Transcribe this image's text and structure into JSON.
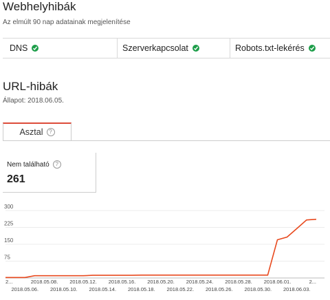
{
  "site_errors": {
    "title": "Webhelyhibák",
    "subtitle": "Az elmúlt 90 nap adatainak megjelenítése",
    "checks": [
      {
        "label": "DNS",
        "status": "ok"
      },
      {
        "label": "Szerverkapcsolat",
        "status": "ok"
      },
      {
        "label": "Robots.txt-lekérés",
        "status": "ok"
      }
    ]
  },
  "url_errors": {
    "title": "URL-hibák",
    "status_line": "Állapot: 2018.06.05.",
    "tab_label": "Asztal",
    "card_label": "Nem található",
    "card_value": "261"
  },
  "colors": {
    "accent": "#dd4b39",
    "ok": "#1e9e4a",
    "line": "#e8491e"
  },
  "chart_data": {
    "type": "line",
    "y_ticks": [
      75,
      150,
      225,
      300
    ],
    "ylim": [
      0,
      300
    ],
    "x_ticks_top": [
      "2...",
      "2018.05.08.",
      "2018.05.12.",
      "2018.05.16.",
      "2018.05.20.",
      "2018.05.24.",
      "2018.05.28.",
      "2018.06.01.",
      "2..."
    ],
    "x_ticks_bottom": [
      "2018.05.06.",
      "2018.05.10.",
      "2018.05.14.",
      "2018.05.18.",
      "2018.05.22.",
      "2018.05.26.",
      "2018.05.30.",
      "2018.06.03."
    ],
    "series": [
      {
        "x": [
          "2018.05.04.",
          "2018.05.05.",
          "2018.05.06.",
          "2018.05.07.",
          "2018.05.08.",
          "2018.05.09.",
          "2018.05.10.",
          "2018.05.11.",
          "2018.05.12.",
          "2018.05.13.",
          "2018.05.14.",
          "2018.05.15.",
          "2018.05.16.",
          "2018.05.17.",
          "2018.05.18.",
          "2018.05.19.",
          "2018.05.20.",
          "2018.05.21.",
          "2018.05.22.",
          "2018.05.23.",
          "2018.05.24.",
          "2018.05.25.",
          "2018.05.26.",
          "2018.05.27.",
          "2018.05.28.",
          "2018.05.29.",
          "2018.05.30.",
          "2018.05.31.",
          "2018.06.01.",
          "2018.06.02.",
          "2018.06.03.",
          "2018.06.04.",
          "2018.06.05."
        ],
        "values": [
          2,
          2,
          2,
          10,
          10,
          10,
          10,
          10,
          10,
          12,
          12,
          12,
          12,
          12,
          13,
          13,
          13,
          13,
          13,
          13,
          13,
          13,
          13,
          13,
          13,
          13,
          13,
          13,
          170,
          182,
          220,
          258,
          261
        ]
      }
    ]
  }
}
